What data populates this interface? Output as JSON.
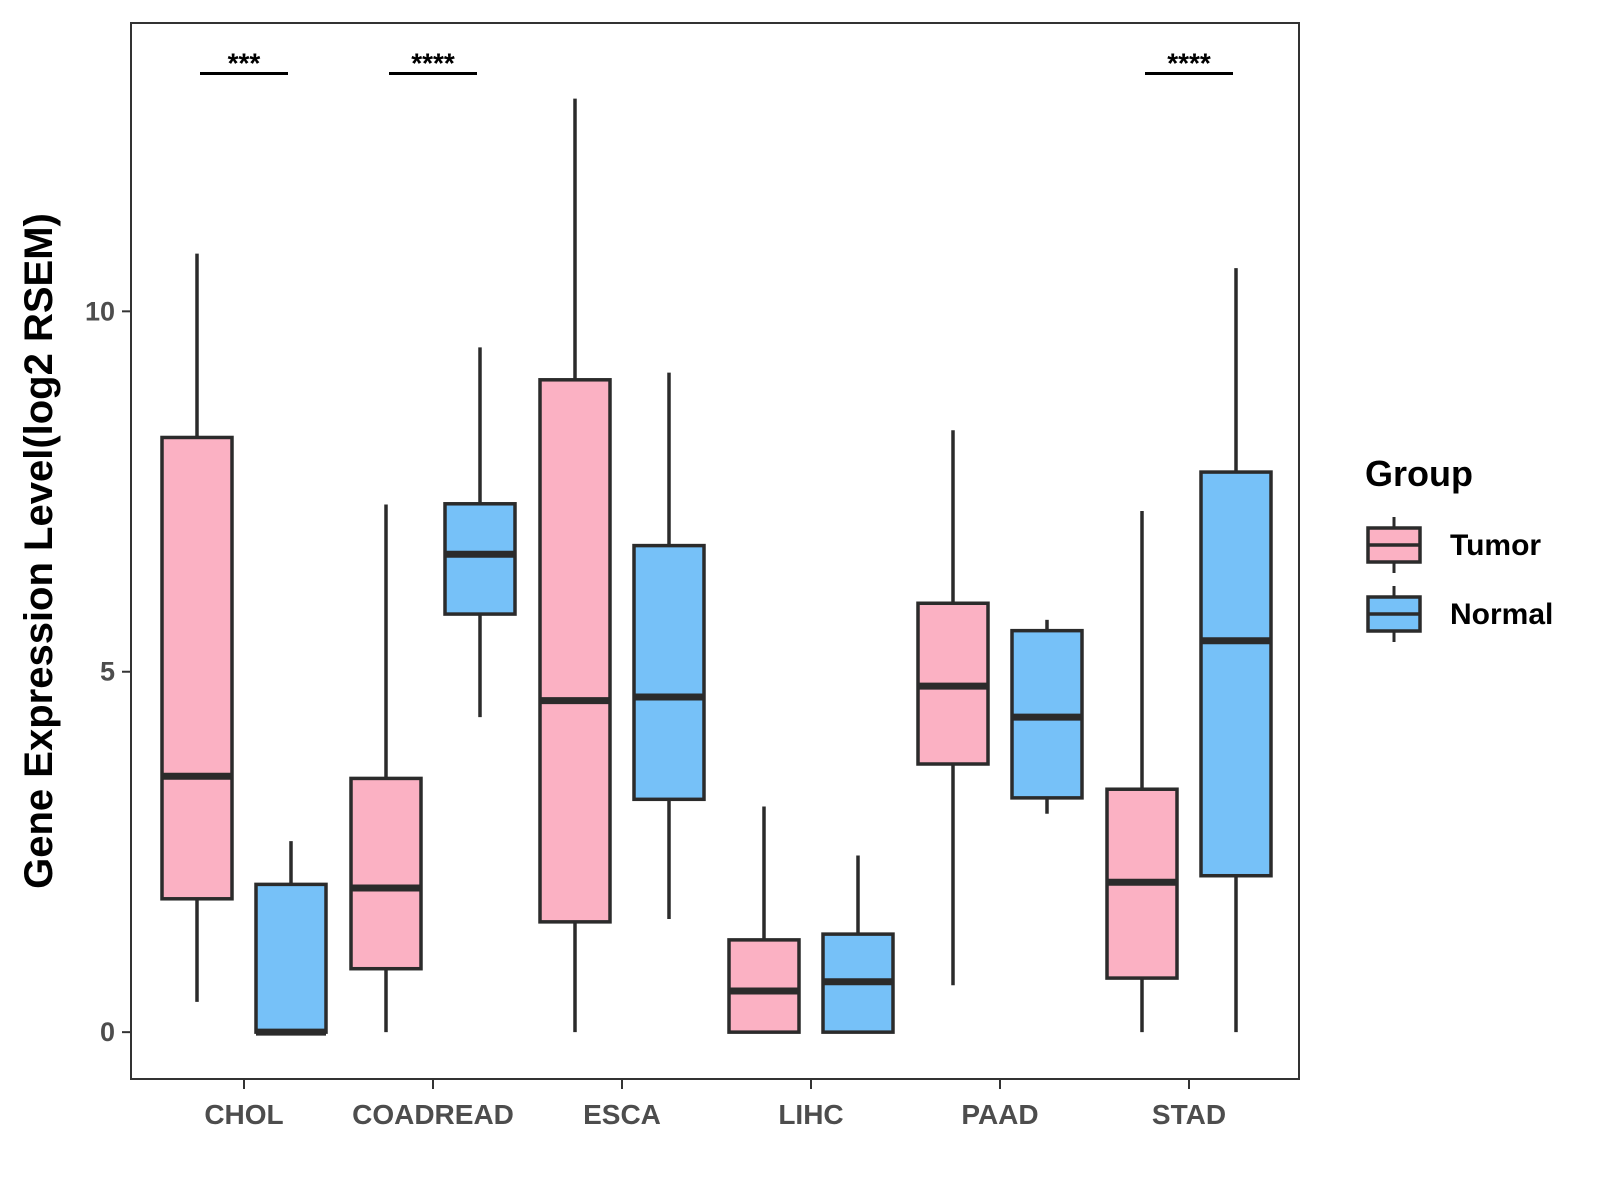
{
  "chart_data": {
    "type": "boxplot",
    "title": "",
    "xlabel": "",
    "ylabel": "Gene Expression Level(log2 RSEM)",
    "ylim": [
      -0.65,
      14.0
    ],
    "yticks": [
      0,
      5,
      10
    ],
    "grid": false,
    "categories": [
      "CHOL",
      "COADREAD",
      "ESCA",
      "LIHC",
      "PAAD",
      "STAD"
    ],
    "series": [
      {
        "name": "Tumor",
        "color": "#FBB1C3",
        "boxes": [
          {
            "whisker_low": 0.42,
            "q1": 1.85,
            "median": 3.55,
            "q3": 8.25,
            "whisker_high": 10.8
          },
          {
            "whisker_low": 0.0,
            "q1": 0.88,
            "median": 2.0,
            "q3": 3.52,
            "whisker_high": 7.32
          },
          {
            "whisker_low": 0.0,
            "q1": 1.53,
            "median": 4.6,
            "q3": 9.05,
            "whisker_high": 12.95
          },
          {
            "whisker_low": 0.0,
            "q1": 0.0,
            "median": 0.57,
            "q3": 1.28,
            "whisker_high": 3.13
          },
          {
            "whisker_low": 0.65,
            "q1": 3.72,
            "median": 4.8,
            "q3": 5.95,
            "whisker_high": 8.35
          },
          {
            "whisker_low": 0.0,
            "q1": 0.75,
            "median": 2.08,
            "q3": 3.37,
            "whisker_high": 7.23
          }
        ]
      },
      {
        "name": "Normal",
        "color": "#76C1F8",
        "boxes": [
          {
            "whisker_low": 0.0,
            "q1": 0.0,
            "median": 0.0,
            "q3": 2.05,
            "whisker_high": 2.65
          },
          {
            "whisker_low": 4.37,
            "q1": 5.8,
            "median": 6.63,
            "q3": 7.33,
            "whisker_high": 9.5
          },
          {
            "whisker_low": 1.57,
            "q1": 3.23,
            "median": 4.65,
            "q3": 6.75,
            "whisker_high": 9.15
          },
          {
            "whisker_low": 0.0,
            "q1": 0.0,
            "median": 0.7,
            "q3": 1.36,
            "whisker_high": 2.45
          },
          {
            "whisker_low": 3.03,
            "q1": 3.25,
            "median": 4.37,
            "q3": 5.57,
            "whisker_high": 5.72
          },
          {
            "whisker_low": 0.0,
            "q1": 2.17,
            "median": 5.43,
            "q3": 7.77,
            "whisker_high": 10.6
          }
        ]
      }
    ],
    "annotations": [
      {
        "category": "CHOL",
        "label": "***",
        "y": 13.3
      },
      {
        "category": "COADREAD",
        "label": "****",
        "y": 13.3
      },
      {
        "category": "STAD",
        "label": "****",
        "y": 13.3
      }
    ],
    "legend": {
      "title": "Group",
      "position": "right",
      "entries": [
        "Tumor",
        "Normal"
      ]
    }
  }
}
